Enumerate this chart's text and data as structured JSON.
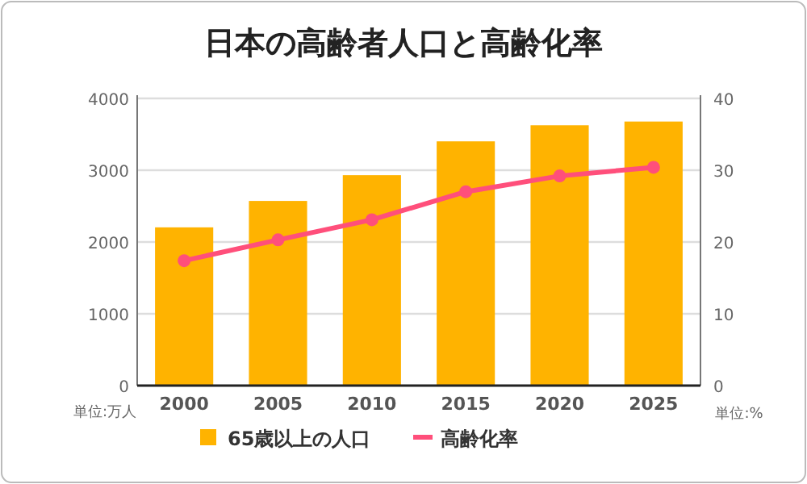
{
  "chart_data": {
    "type": "bar",
    "title": "日本の高齢者人口と高齢化率",
    "categories": [
      "2000",
      "2005",
      "2010",
      "2015",
      "2020",
      "2025"
    ],
    "series": [
      {
        "name": "65歳以上の人口",
        "color": "#ffb300",
        "values": [
          2204,
          2572,
          2931,
          3402,
          3626,
          3678
        ]
      },
      {
        "name": "高齢化率",
        "type": "line",
        "axis": "y2",
        "color": "#ff4f7b",
        "values": [
          17.4,
          20.3,
          23.1,
          27.0,
          29.2,
          30.4
        ]
      }
    ],
    "ylabel": "単位:万人",
    "y2label": "単位:%",
    "ylim": [
      0,
      4000
    ],
    "yticks": [
      0,
      1000,
      2000,
      3000,
      4000
    ],
    "y2lim": [
      0,
      40
    ],
    "y2ticks": [
      0,
      10,
      20,
      30,
      40
    ],
    "grid": "y",
    "legend": "bottom",
    "marker": "circle"
  }
}
